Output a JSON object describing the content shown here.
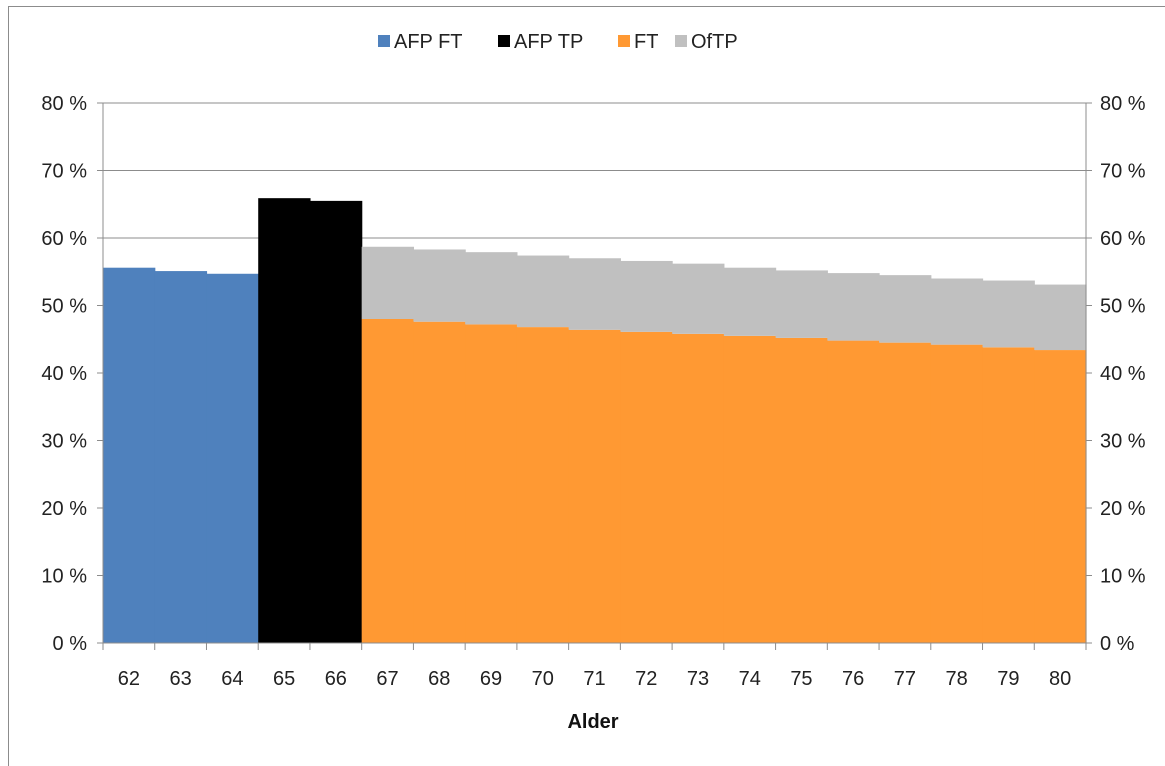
{
  "chart_data": {
    "type": "bar",
    "stacked": true,
    "categories": [
      "62",
      "63",
      "64",
      "65",
      "66",
      "67",
      "68",
      "69",
      "70",
      "71",
      "72",
      "73",
      "74",
      "75",
      "76",
      "77",
      "78",
      "79",
      "80"
    ],
    "series": [
      {
        "name": "AFP FT",
        "color": "#4f81bd",
        "values": [
          55.6,
          55.1,
          54.7,
          0,
          0,
          0,
          0,
          0,
          0,
          0,
          0,
          0,
          0,
          0,
          0,
          0,
          0,
          0,
          0
        ]
      },
      {
        "name": "AFP TP",
        "color": "#000000",
        "values": [
          0,
          0,
          0,
          65.9,
          65.5,
          0,
          0,
          0,
          0,
          0,
          0,
          0,
          0,
          0,
          0,
          0,
          0,
          0,
          0
        ]
      },
      {
        "name": "FT",
        "color": "#ff9933",
        "values": [
          0,
          0,
          0,
          0,
          0,
          48.0,
          47.6,
          47.2,
          46.8,
          46.4,
          46.1,
          45.8,
          45.5,
          45.2,
          44.8,
          44.5,
          44.2,
          43.8,
          43.4
        ]
      },
      {
        "name": "OfTP",
        "color": "#c0c0c0",
        "values": [
          0,
          0,
          0,
          0,
          0,
          10.7,
          10.7,
          10.7,
          10.6,
          10.6,
          10.5,
          10.4,
          10.1,
          10.0,
          10.0,
          10.0,
          9.8,
          9.9,
          9.7
        ]
      }
    ],
    "y_ticks": [
      "0 %",
      "10 %",
      "20 %",
      "30 %",
      "40 %",
      "50 %",
      "60 %",
      "70 %",
      "80 %"
    ],
    "ylim": [
      0,
      80
    ],
    "xlabel": "Alder",
    "ylabel": "",
    "legend_position": "top-center",
    "grid": true,
    "bar_gap": 0
  }
}
